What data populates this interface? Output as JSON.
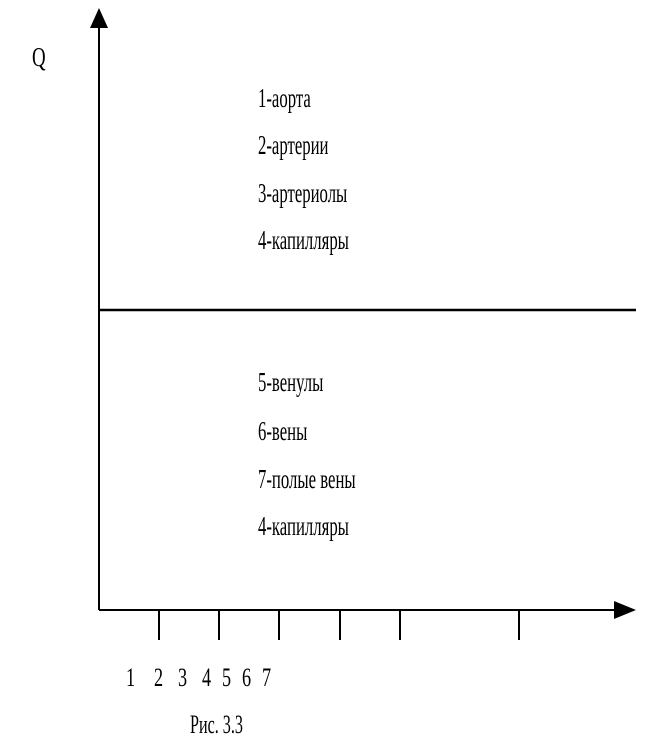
{
  "chart_data": {
    "type": "line",
    "ylabel": "Q",
    "xlabel": "",
    "grid": false,
    "x_tick_labels": [
      "1",
      "2",
      "3",
      "4",
      "5",
      "6",
      "7"
    ],
    "series": [
      {
        "values": [
          1,
          1,
          1,
          1,
          1,
          1,
          1
        ]
      }
    ],
    "legend_upper": [
      "1-аорта",
      "2-артерии",
      "3-артериолы",
      "4-капилляры"
    ],
    "legend_lower": [
      "5-венулы",
      "6-вены",
      "7-полые вены",
      "4-капилляры"
    ],
    "caption": "Рис. 3.3"
  }
}
